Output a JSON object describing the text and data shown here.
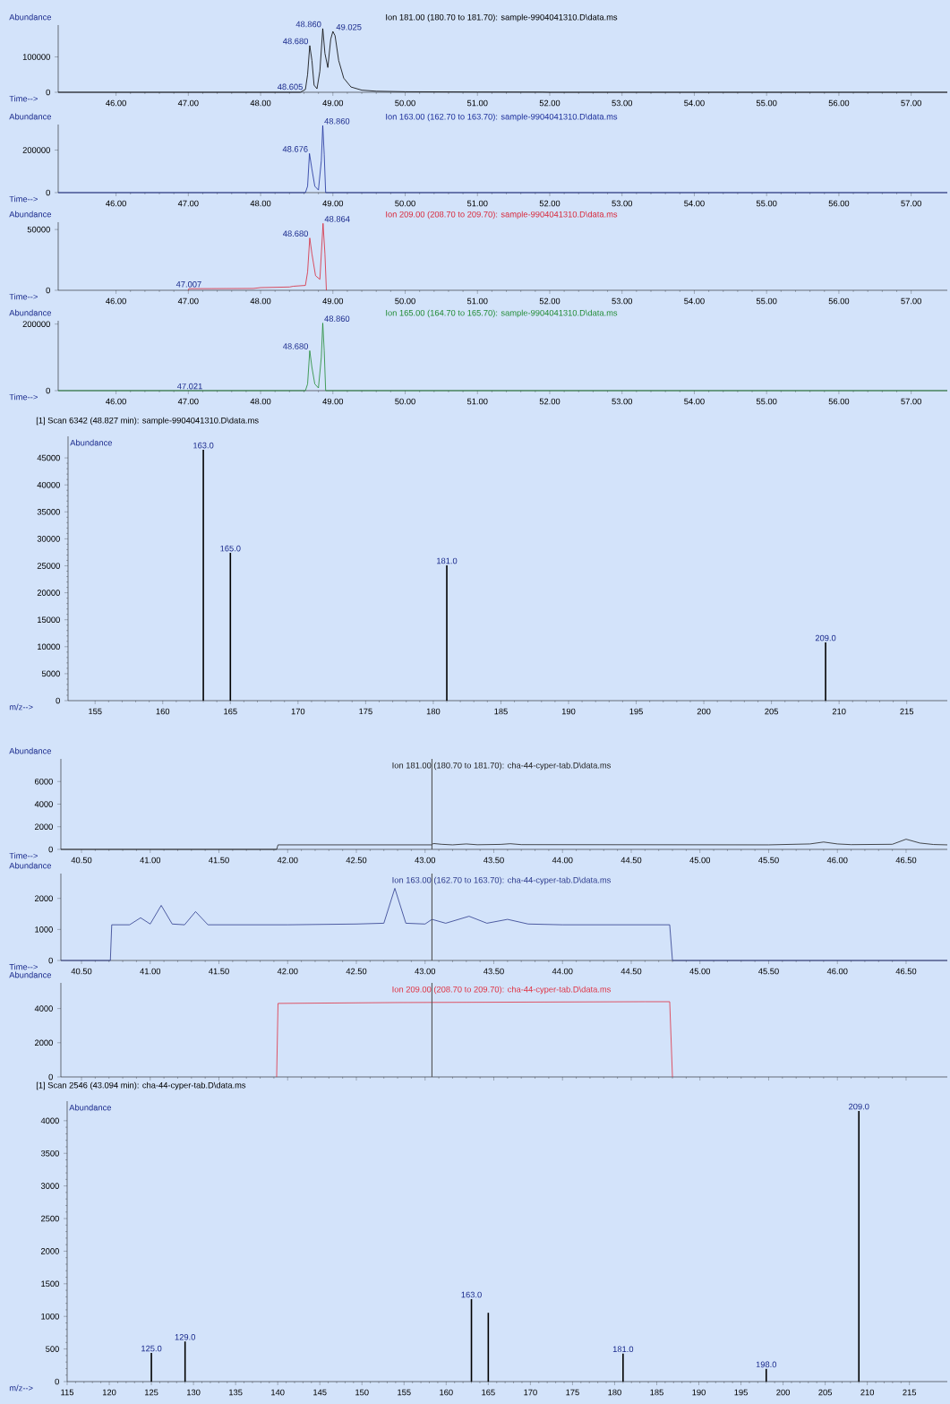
{
  "chart_data": [
    {
      "type": "line",
      "title": "Ion 181.00 (180.70 to 181.70): sample-9904041310.D\\data.ms",
      "xlabel": "Time-->",
      "ylabel": "Abundance",
      "series": [
        {
          "type": "line",
          "color": "#000000",
          "x": [
            45.2,
            48.55,
            48.62,
            48.65,
            48.68,
            48.71,
            48.74,
            48.78,
            48.82,
            48.86,
            48.89,
            48.93,
            48.97,
            49.0,
            49.03,
            49.08,
            49.15,
            49.25,
            49.4,
            49.6,
            50.0,
            51.0,
            51.9,
            52.0,
            57.5
          ],
          "values": [
            0,
            0,
            8000,
            50000,
            132000,
            90000,
            20000,
            10000,
            60000,
            180000,
            110000,
            70000,
            150000,
            172000,
            160000,
            90000,
            40000,
            15000,
            6000,
            3000,
            1500,
            800,
            500,
            0,
            0
          ]
        }
      ],
      "xlim": [
        45.2,
        57.5
      ],
      "ylim": [
        0,
        190000
      ],
      "xticks": [
        {
          "value": 46,
          "label": "46.00"
        },
        {
          "value": 47,
          "label": "47.00"
        },
        {
          "value": 48,
          "label": "48.00"
        },
        {
          "value": 49,
          "label": "49.00"
        },
        {
          "value": 50,
          "label": "50.00"
        },
        {
          "value": 51,
          "label": "51.00"
        },
        {
          "value": 52,
          "label": "52.00"
        },
        {
          "value": 53,
          "label": "53.00"
        },
        {
          "value": 54,
          "label": "54.00"
        },
        {
          "value": 55,
          "label": "55.00"
        },
        {
          "value": 56,
          "label": "56.00"
        },
        {
          "value": 57,
          "label": "57.00"
        }
      ],
      "yticks": [
        0,
        100000
      ],
      "annotations": [
        {
          "text": "48.680",
          "x": 48.68,
          "y": 132000
        },
        {
          "text": "48.605",
          "x": 48.605,
          "y": 3000
        },
        {
          "text": "48.860",
          "x": 48.86,
          "y": 180000
        },
        {
          "text": "49.025",
          "x": 49.025,
          "y": 172000
        }
      ]
    },
    {
      "type": "line",
      "title": "Ion 163.00 (162.70 to 163.70): sample-9904041310.D\\data.ms",
      "xlabel": "Time-->",
      "ylabel": "Abundance",
      "series": [
        {
          "type": "line",
          "color": "#1c2e9a",
          "x": [
            45.2,
            48.62,
            48.65,
            48.676,
            48.71,
            48.75,
            48.8,
            48.84,
            48.86,
            48.88,
            48.9,
            57.5
          ],
          "values": [
            0,
            0,
            30000,
            184000,
            110000,
            30000,
            12000,
            150000,
            315000,
            180000,
            0,
            0
          ]
        }
      ],
      "xlim": [
        45.2,
        57.5
      ],
      "ylim": [
        0,
        320000
      ],
      "xticks": [
        {
          "value": 46,
          "label": "46.00"
        },
        {
          "value": 47,
          "label": "47.00"
        },
        {
          "value": 48,
          "label": "48.00"
        },
        {
          "value": 49,
          "label": "49.00"
        },
        {
          "value": 50,
          "label": "50.00"
        },
        {
          "value": 51,
          "label": "51.00"
        },
        {
          "value": 52,
          "label": "52.00"
        },
        {
          "value": 53,
          "label": "53.00"
        },
        {
          "value": 54,
          "label": "54.00"
        },
        {
          "value": 55,
          "label": "55.00"
        },
        {
          "value": 56,
          "label": "56.00"
        },
        {
          "value": 57,
          "label": "57.00"
        }
      ],
      "yticks": [
        0,
        200000
      ],
      "annotations": [
        {
          "text": "48.676",
          "x": 48.676,
          "y": 184000
        },
        {
          "text": "48.860",
          "x": 48.86,
          "y": 315000
        }
      ]
    },
    {
      "type": "line",
      "title": "Ion 209.00 (208.70 to 209.70): sample-9904041310.D\\data.ms",
      "xlabel": "Time-->",
      "ylabel": "Abundance",
      "series": [
        {
          "type": "line",
          "color": "#d8283a",
          "x": [
            47.0,
            47.007,
            47.9,
            48.0,
            48.4,
            48.45,
            48.62,
            48.65,
            48.68,
            48.71,
            48.76,
            48.82,
            48.864,
            48.89,
            48.91
          ],
          "values": [
            0,
            1300,
            1500,
            2200,
            2700,
            3300,
            4000,
            15000,
            43000,
            30000,
            12000,
            9000,
            55000,
            30000,
            0
          ]
        }
      ],
      "xlim": [
        45.2,
        57.5
      ],
      "ylim": [
        0,
        56000
      ],
      "xticks": [
        {
          "value": 46,
          "label": "46.00"
        },
        {
          "value": 47,
          "label": "47.00"
        },
        {
          "value": 48,
          "label": "48.00"
        },
        {
          "value": 49,
          "label": "49.00"
        },
        {
          "value": 50,
          "label": "50.00"
        },
        {
          "value": 51,
          "label": "51.00"
        },
        {
          "value": 52,
          "label": "52.00"
        },
        {
          "value": 53,
          "label": "53.00"
        },
        {
          "value": 54,
          "label": "54.00"
        },
        {
          "value": 55,
          "label": "55.00"
        },
        {
          "value": 56,
          "label": "56.00"
        },
        {
          "value": 57,
          "label": "57.00"
        }
      ],
      "yticks": [
        0,
        50000
      ],
      "annotations": [
        {
          "text": "47.007",
          "x": 47.007,
          "y": 1300
        },
        {
          "text": "48.680",
          "x": 48.68,
          "y": 43000
        },
        {
          "text": "48.864",
          "x": 48.864,
          "y": 55000
        }
      ]
    },
    {
      "type": "line",
      "title": "Ion 165.00 (164.70 to 165.70): sample-9904041310.D\\data.ms",
      "xlabel": "Time-->",
      "ylabel": "Abundance",
      "series": [
        {
          "type": "line",
          "color": "#1f8a32",
          "x": [
            45.2,
            48.62,
            48.65,
            48.68,
            48.71,
            48.75,
            48.8,
            48.84,
            48.86,
            48.88,
            48.9,
            57.5
          ],
          "values": [
            0,
            0,
            20000,
            120000,
            70000,
            20000,
            8000,
            100000,
            203000,
            120000,
            0,
            0
          ]
        }
      ],
      "xlim": [
        45.2,
        57.5
      ],
      "ylim": [
        0,
        210000
      ],
      "xticks": [
        {
          "value": 46,
          "label": "46.00"
        },
        {
          "value": 47,
          "label": "47.00"
        },
        {
          "value": 48,
          "label": "48.00"
        },
        {
          "value": 49,
          "label": "49.00"
        },
        {
          "value": 50,
          "label": "50.00"
        },
        {
          "value": 51,
          "label": "51.00"
        },
        {
          "value": 52,
          "label": "52.00"
        },
        {
          "value": 53,
          "label": "53.00"
        },
        {
          "value": 54,
          "label": "54.00"
        },
        {
          "value": 55,
          "label": "55.00"
        },
        {
          "value": 56,
          "label": "56.00"
        },
        {
          "value": 57,
          "label": "57.00"
        }
      ],
      "yticks": [
        0,
        200000
      ],
      "annotations": [
        {
          "text": "47.021",
          "x": 47.021,
          "y": 0
        },
        {
          "text": "48.680",
          "x": 48.68,
          "y": 120000
        },
        {
          "text": "48.860",
          "x": 48.86,
          "y": 203000
        }
      ]
    },
    {
      "type": "bar",
      "title": "[1] Scan 6342 (48.827 min): sample-9904041310.D\\data.ms",
      "xlabel": "m/z-->",
      "ylabel": "Abundance",
      "color": "#000000",
      "x": [
        163,
        165,
        181,
        209
      ],
      "values": [
        46500,
        27400,
        25100,
        10800
      ],
      "annotations": [
        {
          "text": "163.0",
          "x": 163,
          "y": 46500
        },
        {
          "text": "165.0",
          "x": 165,
          "y": 27400
        },
        {
          "text": "181.0",
          "x": 181,
          "y": 25100
        },
        {
          "text": "209.0",
          "x": 209,
          "y": 10800
        }
      ],
      "xlim": [
        153,
        218
      ],
      "ylim": [
        0,
        49000
      ],
      "xticks": [
        155,
        160,
        165,
        170,
        175,
        180,
        185,
        190,
        195,
        200,
        205,
        210,
        215
      ],
      "yticks": [
        0,
        5000,
        10000,
        15000,
        20000,
        25000,
        30000,
        35000,
        40000,
        45000
      ]
    },
    {
      "type": "line",
      "title": "Ion 181.00 (180.70 to 181.70): cha-44-cyper-tab.D\\data.ms",
      "xlabel": "Time-->",
      "ylabel": "Abundance",
      "series": [
        {
          "type": "line",
          "color": "#202020",
          "x": [
            40.35,
            41.92,
            41.93,
            43.05,
            43.06,
            43.12,
            43.2,
            43.3,
            43.38,
            43.55,
            43.62,
            43.7,
            45.5,
            45.8,
            45.9,
            46.0,
            46.1,
            46.4,
            46.5,
            46.6,
            46.7,
            46.8
          ],
          "values": [
            0,
            0,
            400,
            400,
            520,
            450,
            400,
            480,
            410,
            440,
            500,
            420,
            400,
            480,
            650,
            480,
            420,
            450,
            900,
            560,
            430,
            400
          ]
        }
      ],
      "xlim": [
        40.35,
        46.8
      ],
      "ylim": [
        0,
        8000
      ],
      "xticks": [
        {
          "value": 40.5,
          "label": "40.50"
        },
        {
          "value": 41,
          "label": "41.00"
        },
        {
          "value": 41.5,
          "label": "41.50"
        },
        {
          "value": 42,
          "label": "42.00"
        },
        {
          "value": 42.5,
          "label": "42.50"
        },
        {
          "value": 43,
          "label": "43.00"
        },
        {
          "value": 43.5,
          "label": "43.50"
        },
        {
          "value": 44,
          "label": "44.00"
        },
        {
          "value": 44.5,
          "label": "44.50"
        },
        {
          "value": 45,
          "label": "45.00"
        },
        {
          "value": 45.5,
          "label": "45.50"
        },
        {
          "value": 46,
          "label": "46.00"
        },
        {
          "value": 46.5,
          "label": "46.50"
        }
      ],
      "yticks": [
        0,
        2000,
        4000,
        6000
      ],
      "ref_lines": [
        {
          "axis": "x",
          "value": 43.05,
          "color": "#505050"
        }
      ]
    },
    {
      "type": "line",
      "title": "Ion 163.00 (162.70 to 163.70): cha-44-cyper-tab.D\\data.ms",
      "xlabel": "Time-->",
      "ylabel": "Abundance",
      "series": [
        {
          "type": "line",
          "color": "#2c3a8c",
          "x": [
            40.35,
            40.71,
            40.72,
            40.85,
            40.93,
            41.0,
            41.08,
            41.16,
            41.25,
            41.33,
            41.42,
            42.0,
            42.5,
            42.7,
            42.78,
            42.86,
            43.0,
            43.05,
            43.15,
            43.32,
            43.45,
            43.6,
            43.75,
            44.0,
            44.5,
            44.78,
            44.8,
            46.8
          ],
          "values": [
            0,
            0,
            1150,
            1150,
            1375,
            1175,
            1775,
            1175,
            1150,
            1575,
            1150,
            1150,
            1175,
            1200,
            2325,
            1200,
            1175,
            1325,
            1200,
            1425,
            1200,
            1325,
            1175,
            1150,
            1150,
            1150,
            0,
            0
          ]
        }
      ],
      "xlim": [
        40.35,
        46.8
      ],
      "ylim": [
        0,
        2800
      ],
      "xticks": [
        {
          "value": 40.5,
          "label": "40.50"
        },
        {
          "value": 41,
          "label": "41.00"
        },
        {
          "value": 41.5,
          "label": "41.50"
        },
        {
          "value": 42,
          "label": "42.00"
        },
        {
          "value": 42.5,
          "label": "42.50"
        },
        {
          "value": 43,
          "label": "43.00"
        },
        {
          "value": 43.5,
          "label": "43.50"
        },
        {
          "value": 44,
          "label": "44.00"
        },
        {
          "value": 44.5,
          "label": "44.50"
        },
        {
          "value": 45,
          "label": "45.00"
        },
        {
          "value": 45.5,
          "label": "45.50"
        },
        {
          "value": 46,
          "label": "46.00"
        },
        {
          "value": 46.5,
          "label": "46.50"
        }
      ],
      "yticks": [
        0,
        1000,
        2000
      ],
      "ref_lines": [
        {
          "axis": "x",
          "value": 43.05,
          "color": "#505050"
        }
      ]
    },
    {
      "type": "line",
      "title": "Ion 209.00 (208.70 to 209.70): cha-44-cyper-tab.D\\data.ms",
      "ylabel": "Abundance",
      "tick_labels": "y",
      "series": [
        {
          "type": "line",
          "color": "#e03040",
          "x": [
            41.92,
            41.93,
            42.8,
            44.6,
            44.78,
            44.8
          ],
          "values": [
            0,
            4300,
            4350,
            4400,
            4400,
            0
          ]
        }
      ],
      "xlim": [
        40.35,
        46.8
      ],
      "ylim": [
        0,
        5500
      ],
      "xticks": [
        40.5,
        41,
        41.5,
        42,
        42.5,
        43,
        43.5,
        44,
        44.5,
        45,
        45.5,
        46,
        46.5
      ],
      "yticks": [
        0,
        2000,
        4000
      ],
      "ref_lines": [
        {
          "axis": "x",
          "value": 43.05,
          "color": "#505050"
        }
      ]
    },
    {
      "type": "bar",
      "title": "[1] Scan 2546 (43.094 min): cha-44-cyper-tab.D\\data.ms",
      "xlabel": "m/z-->",
      "ylabel": "Abundance",
      "color": "#000000",
      "x": [
        125,
        129,
        163,
        165,
        181,
        198,
        209
      ],
      "values": [
        440,
        615,
        1265,
        1055,
        430,
        195,
        4150
      ],
      "annotations": [
        {
          "text": "125.0",
          "x": 125,
          "y": 440
        },
        {
          "text": "129.0",
          "x": 129,
          "y": 615
        },
        {
          "text": "163.0",
          "x": 163,
          "y": 1265
        },
        {
          "text": "181.0",
          "x": 181,
          "y": 430
        },
        {
          "text": "198.0",
          "x": 198,
          "y": 195
        },
        {
          "text": "209.0",
          "x": 209,
          "y": 4150
        }
      ],
      "xlim": [
        115,
        219.5
      ],
      "ylim": [
        0,
        4300
      ],
      "xticks": [
        115,
        120,
        125,
        130,
        135,
        140,
        145,
        150,
        155,
        160,
        165,
        170,
        175,
        180,
        185,
        190,
        195,
        200,
        205,
        210,
        215
      ],
      "yticks": [
        0,
        500,
        1000,
        1500,
        2000,
        2500,
        3000,
        3500,
        4000
      ]
    }
  ]
}
